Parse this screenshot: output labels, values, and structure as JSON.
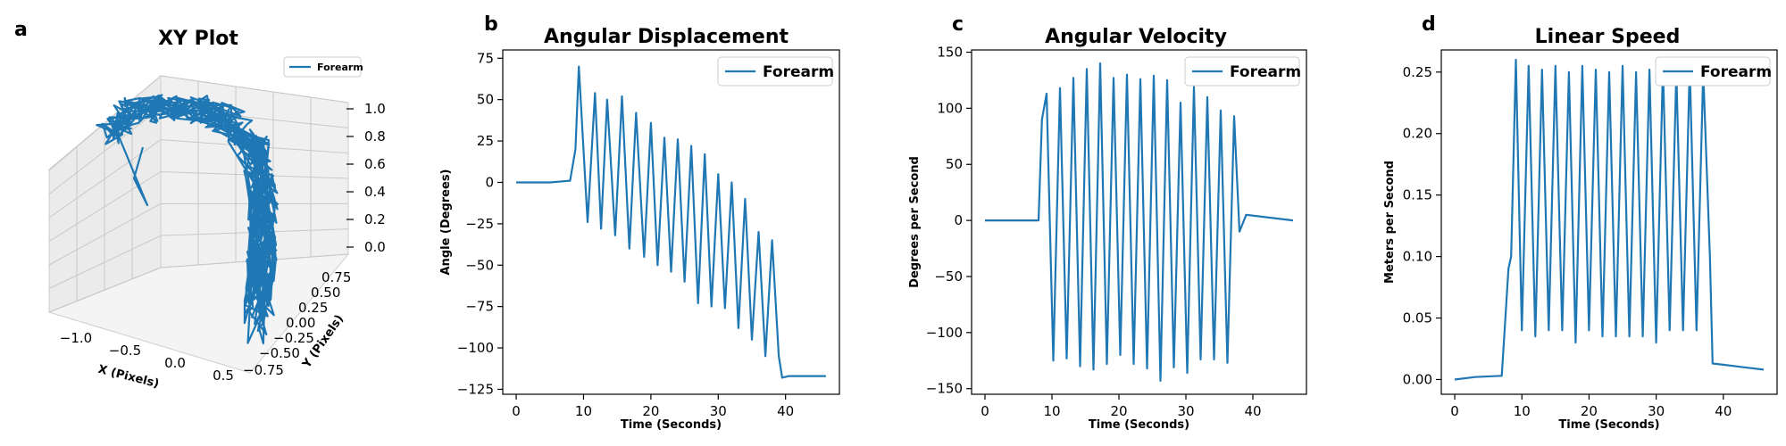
{
  "panels": [
    {
      "letter": "a",
      "title": "XY Plot"
    },
    {
      "letter": "b",
      "title": "Angular Displacement"
    },
    {
      "letter": "c",
      "title": "Angular Velocity"
    },
    {
      "letter": "d",
      "title": "Linear Speed"
    }
  ],
  "chart_data": [
    {
      "type": "line",
      "projection": "3d",
      "title": "XY Plot",
      "xlabel": "X (Pixels)",
      "ylabel": "Y (Pixels)",
      "zlabel": "",
      "x_ticks": [
        "−1.0",
        "−0.5",
        "0.0",
        "0.5"
      ],
      "y_ticks": [
        "−0.75",
        "−0.50",
        "−0.25",
        "0.00",
        "0.25",
        "0.50",
        "0.75"
      ],
      "z_ticks": [
        "0.0",
        "0.2",
        "0.4",
        "0.6",
        "0.8",
        "1.0"
      ],
      "xlim": [
        -1.4,
        0.9
      ],
      "ylim": [
        -0.9,
        0.9
      ],
      "zlim": [
        0,
        1.1
      ],
      "legend": {
        "entries": [
          "Forearm"
        ],
        "position": "top-right"
      },
      "series": [
        {
          "name": "Forearm",
          "color": "#1f77b4",
          "path_description_points": [
            {
              "x": -1.3,
              "y": 0.1,
              "z": 0.95
            },
            {
              "x": -0.9,
              "y": 0.2,
              "z": 1.0
            },
            {
              "x": -0.4,
              "y": 0.3,
              "z": 1.0
            },
            {
              "x": 0.0,
              "y": 0.2,
              "z": 0.85
            },
            {
              "x": 0.2,
              "y": 0.0,
              "z": 0.5
            },
            {
              "x": 0.3,
              "y": -0.3,
              "z": 0.1
            },
            {
              "x": 0.3,
              "y": -0.6,
              "z": 0.0
            }
          ]
        }
      ]
    },
    {
      "type": "line",
      "title": "Angular Displacement",
      "xlabel": "Time (Seconds)",
      "ylabel": "Angle (Degrees)",
      "xlim": [
        -2,
        48
      ],
      "ylim": [
        -128,
        80
      ],
      "xticks": [
        0,
        10,
        20,
        30,
        40
      ],
      "yticks": [
        75,
        50,
        25,
        0,
        -25,
        -50,
        -75,
        -100,
        -125
      ],
      "legend": {
        "entries": [
          "Forearm"
        ],
        "position": "top-right"
      },
      "series": [
        {
          "name": "Forearm",
          "color": "#1f77b4",
          "x": [
            0,
            5,
            8,
            8.8,
            9.3,
            10.6,
            11.7,
            12.6,
            13.5,
            14.7,
            15.7,
            16.8,
            17.8,
            19.0,
            20.0,
            21.0,
            22.0,
            23.0,
            24.0,
            25.0,
            26.0,
            27.0,
            28.0,
            29.0,
            30.0,
            31.0,
            32.0,
            33.0,
            34.0,
            35.0,
            36.0,
            37.0,
            38.0,
            39.0,
            39.5,
            40.5,
            46
          ],
          "y": [
            0,
            0,
            1,
            20,
            70,
            -24,
            54,
            -28,
            50,
            -32,
            52,
            -40,
            42,
            -45,
            36,
            -50,
            27,
            -54,
            26,
            -60,
            22,
            -73,
            17,
            -75,
            5,
            -76,
            0,
            -88,
            -10,
            -95,
            -30,
            -105,
            -35,
            -105,
            -118,
            -117,
            -117
          ]
        }
      ]
    },
    {
      "type": "line",
      "title": "Angular Velocity",
      "xlabel": "Time (Seconds)",
      "ylabel": "Degrees per Second",
      "xlim": [
        -2,
        48
      ],
      "ylim": [
        -155,
        152
      ],
      "xticks": [
        0,
        10,
        20,
        30,
        40
      ],
      "yticks": [
        150,
        100,
        50,
        0,
        -50,
        -100,
        -150
      ],
      "legend": {
        "entries": [
          "Forearm"
        ],
        "position": "top-right"
      },
      "series": [
        {
          "name": "Forearm",
          "color": "#1f77b4",
          "x": [
            0,
            8,
            8.5,
            9.2,
            10.2,
            11.2,
            12.2,
            13.2,
            14.2,
            15.2,
            16.2,
            17.2,
            18.2,
            19.2,
            20.2,
            21.2,
            22.2,
            23.2,
            24.2,
            25.2,
            26.2,
            27.2,
            28.2,
            29.2,
            30.2,
            31.2,
            32.2,
            33.2,
            34.2,
            35.2,
            36.2,
            37.2,
            38.0,
            39.0,
            46
          ],
          "y": [
            0,
            0,
            90,
            113,
            -125,
            118,
            -123,
            127,
            -130,
            135,
            -133,
            140,
            -128,
            127,
            -120,
            130,
            -128,
            126,
            -132,
            129,
            -143,
            125,
            -131,
            105,
            -136,
            119,
            -124,
            110,
            -124,
            98,
            -127,
            93,
            -10,
            5,
            0
          ]
        }
      ]
    },
    {
      "type": "line",
      "title": "Linear Speed",
      "xlabel": "Time (Seconds)",
      "ylabel": "Meters per Second",
      "xlim": [
        -2,
        48
      ],
      "ylim": [
        -0.012,
        0.268
      ],
      "xticks": [
        0,
        10,
        20,
        30,
        40
      ],
      "yticks": [
        0.25,
        0.2,
        0.15,
        0.1,
        0.05,
        0.0
      ],
      "legend": {
        "entries": [
          "Forearm"
        ],
        "position": "top-right"
      },
      "series": [
        {
          "name": "Forearm",
          "color": "#1f77b4",
          "x": [
            0,
            3,
            7,
            8.0,
            8.4,
            9.1,
            10.0,
            11.0,
            12.0,
            13.0,
            14.0,
            15.0,
            16.0,
            17.0,
            18.0,
            19.0,
            20.0,
            21.0,
            22.0,
            23.0,
            24.0,
            25.0,
            26.0,
            27.0,
            28.0,
            29.0,
            30.0,
            31.0,
            32.0,
            33.0,
            34.0,
            35.0,
            36.0,
            37.0,
            38.0,
            38.4,
            40.0,
            43.0,
            46
          ],
          "y": [
            0.0,
            0.002,
            0.003,
            0.09,
            0.1,
            0.26,
            0.04,
            0.255,
            0.035,
            0.252,
            0.04,
            0.255,
            0.04,
            0.25,
            0.03,
            0.255,
            0.04,
            0.252,
            0.035,
            0.25,
            0.035,
            0.255,
            0.035,
            0.25,
            0.035,
            0.252,
            0.03,
            0.255,
            0.04,
            0.25,
            0.04,
            0.255,
            0.04,
            0.25,
            0.1,
            0.013,
            0.012,
            0.01,
            0.008
          ]
        }
      ]
    }
  ]
}
